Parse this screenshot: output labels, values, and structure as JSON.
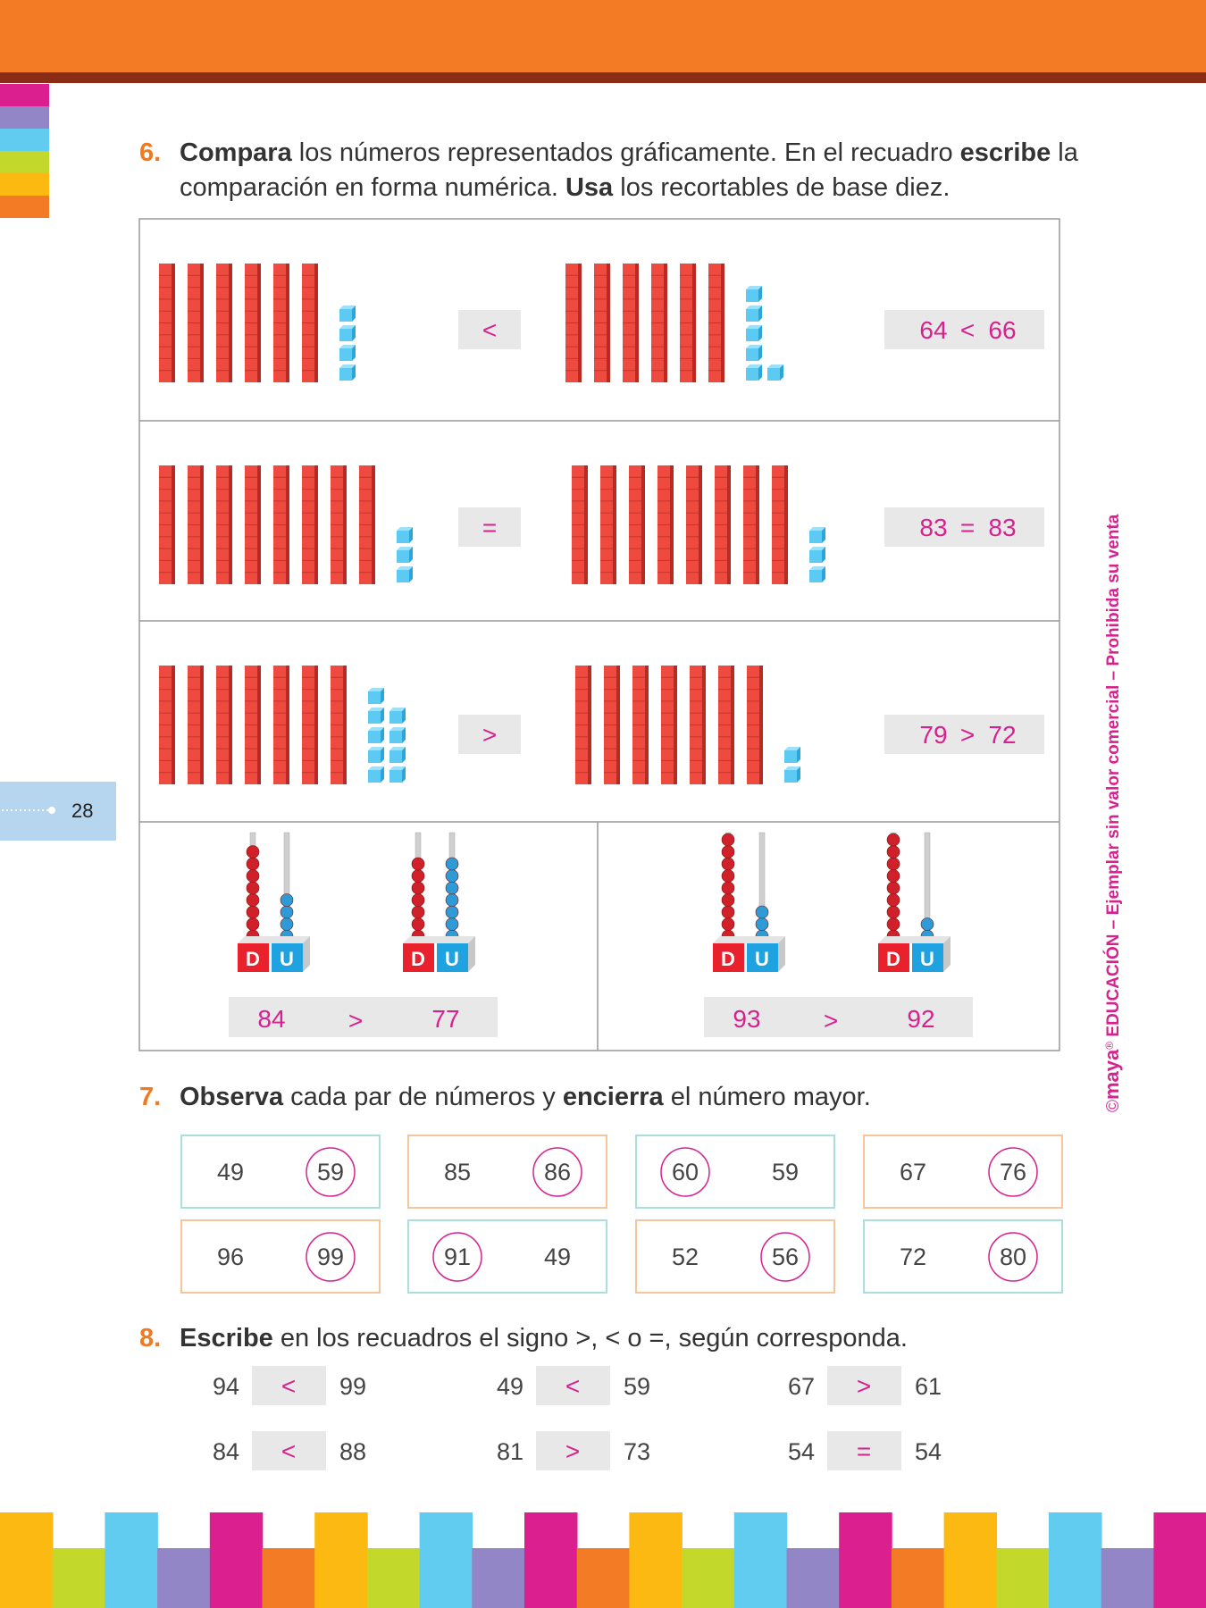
{
  "side_tab": {
    "page_number": 28
  },
  "vertical_note": {
    "copyright": "©",
    "brand": "maya",
    "registered": "®",
    "text": " EDUCACIÓN – Ejemplar sin valor comercial – Prohibida su venta"
  },
  "exercise_6": {
    "number": "6.",
    "instruction_lines": [
      [
        {
          "text": "Compara",
          "bold": true
        },
        {
          "text": " los números representados gráficamente. En el recuadro ",
          "bold": false
        },
        {
          "text": "escribe",
          "bold": true
        },
        {
          "text": " la",
          "bold": false
        }
      ],
      [
        {
          "text": "comparación en forma numérica. ",
          "bold": false
        },
        {
          "text": "Usa",
          "bold": true
        },
        {
          "text": " los recortables de base diez.",
          "bold": false
        }
      ]
    ],
    "rows": [
      {
        "left": 64,
        "sign": "<",
        "right": 66,
        "answer_sign": "<"
      },
      {
        "left": 83,
        "sign": "=",
        "right": 83,
        "answer_sign": "="
      },
      {
        "left": 79,
        "sign": ">",
        "right": 72,
        "answer_sign": ">"
      }
    ],
    "place_labels": {
      "tens": "D",
      "units": "U"
    },
    "abacus_items": [
      {
        "left": 84,
        "sign": ">",
        "right": 77
      },
      {
        "left": 93,
        "sign": ">",
        "right": 92
      }
    ]
  },
  "exercise_7": {
    "number": "7.",
    "instruction_lines": [
      [
        {
          "text": "Observa",
          "bold": true
        },
        {
          "text": " cada par de números y ",
          "bold": false
        },
        {
          "text": "encierra",
          "bold": true
        },
        {
          "text": " el número mayor.",
          "bold": false
        }
      ]
    ],
    "pairs": [
      {
        "numbers": [
          49,
          59
        ],
        "circled": 1
      },
      {
        "numbers": [
          85,
          86
        ],
        "circled": 1
      },
      {
        "numbers": [
          60,
          59
        ],
        "circled": 0
      },
      {
        "numbers": [
          67,
          76
        ],
        "circled": 1
      },
      {
        "numbers": [
          96,
          99
        ],
        "circled": 1
      },
      {
        "numbers": [
          91,
          49
        ],
        "circled": 0
      },
      {
        "numbers": [
          52,
          56
        ],
        "circled": 1
      },
      {
        "numbers": [
          72,
          80
        ],
        "circled": 1
      }
    ]
  },
  "exercise_8": {
    "number": "8.",
    "instruction_lines": [
      [
        {
          "text": "Escribe",
          "bold": true
        },
        {
          "text": " en los recuadros el signo >, < o =, según corresponda.",
          "bold": false
        }
      ]
    ],
    "items": [
      {
        "left": 94,
        "sign": "<",
        "right": 99
      },
      {
        "left": 49,
        "sign": "<",
        "right": 59
      },
      {
        "left": 67,
        "sign": ">",
        "right": 61
      },
      {
        "left": 84,
        "sign": "<",
        "right": 88
      },
      {
        "left": 81,
        "sign": ">",
        "right": 73
      },
      {
        "left": 54,
        "sign": "=",
        "right": 54
      }
    ]
  }
}
